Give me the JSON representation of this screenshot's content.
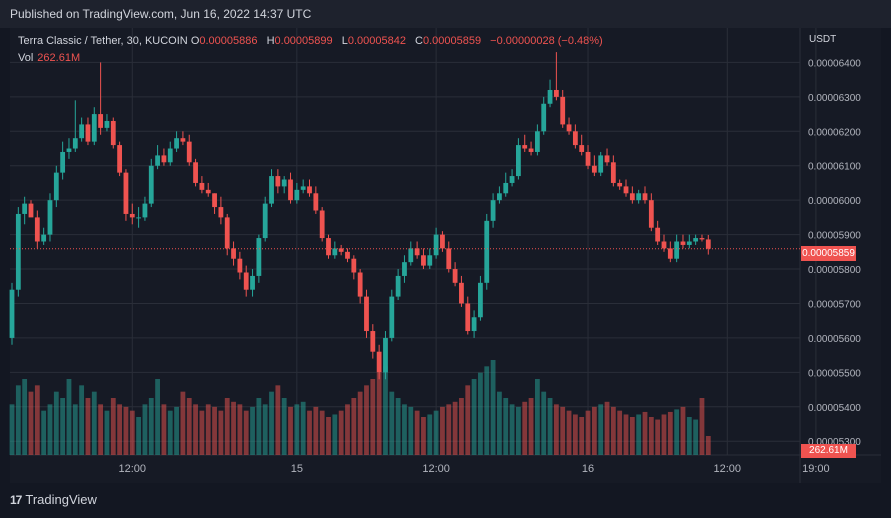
{
  "header": {
    "published_text": "Published on TradingView.com, Jun 16, 2022 14:37 UTC"
  },
  "legend": {
    "symbol": "Terra Classic / Tether, 30, KUCOIN",
    "o_label": "O",
    "o_value": "0.00005886",
    "h_label": "H",
    "h_value": "0.00005899",
    "l_label": "L",
    "l_value": "0.00005842",
    "c_label": "C",
    "c_value": "0.00005859",
    "change": "−0.00000028 (−0.48%)",
    "vol_label": "Vol",
    "vol_value": "262.61M"
  },
  "axis": {
    "currency": "USDT",
    "last_price_tag": "0.00005859",
    "volume_tag": "262.61M"
  },
  "footer": {
    "brand": "TradingView",
    "logo": "17"
  },
  "colors": {
    "up": "#26a69a",
    "down": "#ef5350",
    "grid": "#2a2e39",
    "bg": "#161a25"
  },
  "chart_data": {
    "type": "candlestick",
    "symbol": "Terra Classic / Tether",
    "interval": "30",
    "exchange": "KUCOIN",
    "y_ticks": [
      "0.00005300",
      "0.00005400",
      "0.00005500",
      "0.00005600",
      "0.00005700",
      "0.00005800",
      "0.00005900",
      "0.00006000",
      "0.00006100",
      "0.00006200",
      "0.00006300",
      "0.00006400"
    ],
    "x_ticks": [
      "12:00",
      "15",
      "12:00",
      "16",
      "12:00",
      "19:00"
    ],
    "x_tick_index": [
      19,
      45,
      67,
      91,
      113,
      127
    ],
    "ylim": [
      5.26e-05,
      6.5e-05
    ],
    "last_price": 5.859e-05,
    "grid": true,
    "candles": {
      "open": [
        5600,
        5740,
        5960,
        5990,
        5950,
        5880,
        5900,
        6000,
        6080,
        6140,
        6150,
        6180,
        6220,
        6170,
        6250,
        6210,
        6230,
        6160,
        6080,
        5960,
        5950,
        5950,
        5990,
        6100,
        6130,
        6110,
        6150,
        6180,
        6170,
        6110,
        6050,
        6030,
        6020,
        5980,
        5950,
        5860,
        5830,
        5790,
        5740,
        5780,
        5890,
        5990,
        6070,
        6040,
        6060,
        6000,
        6030,
        6040,
        6020,
        5970,
        5890,
        5840,
        5860,
        5850,
        5830,
        5790,
        5720,
        5620,
        5560,
        5500,
        5600,
        5720,
        5780,
        5820,
        5860,
        5840,
        5810,
        5840,
        5900,
        5860,
        5800,
        5760,
        5700,
        5620,
        5660,
        5760,
        5940,
        6000,
        6020,
        6050,
        6070,
        6160,
        6150,
        6140,
        6200,
        6280,
        6320,
        6300,
        6220,
        6200,
        6160,
        6140,
        6100,
        6080,
        6130,
        6110,
        6050,
        6040,
        6020,
        6000,
        6020,
        6000,
        5920,
        5880,
        5860,
        5830,
        5880,
        5870,
        5880,
        5890,
        5886
      ],
      "close": [
        5740,
        5960,
        5990,
        5950,
        5880,
        5900,
        6000,
        6080,
        6140,
        6150,
        6180,
        6220,
        6170,
        6250,
        6210,
        6230,
        6160,
        6080,
        5960,
        5950,
        5950,
        5990,
        6100,
        6130,
        6110,
        6150,
        6180,
        6170,
        6110,
        6050,
        6030,
        6020,
        5980,
        5950,
        5860,
        5830,
        5790,
        5740,
        5780,
        5890,
        5990,
        6070,
        6040,
        6060,
        6000,
        6030,
        6040,
        6020,
        5970,
        5890,
        5840,
        5860,
        5850,
        5830,
        5790,
        5720,
        5620,
        5560,
        5500,
        5600,
        5720,
        5780,
        5820,
        5860,
        5840,
        5810,
        5840,
        5900,
        5860,
        5800,
        5760,
        5700,
        5620,
        5660,
        5760,
        5940,
        6000,
        6020,
        6050,
        6070,
        6160,
        6150,
        6140,
        6200,
        6280,
        6320,
        6300,
        6220,
        6200,
        6160,
        6140,
        6100,
        6080,
        6130,
        6110,
        6050,
        6040,
        6020,
        6000,
        6020,
        6000,
        5920,
        5880,
        5860,
        5830,
        5880,
        5870,
        5880,
        5890,
        5886,
        5859
      ],
      "high": [
        5760,
        5980,
        6010,
        6000,
        5970,
        5920,
        6020,
        6100,
        6170,
        6180,
        6290,
        6240,
        6240,
        6270,
        6400,
        6250,
        6240,
        6170,
        6090,
        5990,
        5980,
        6010,
        6120,
        6160,
        6150,
        6170,
        6200,
        6200,
        6190,
        6120,
        6070,
        6050,
        6020,
        6010,
        5960,
        5880,
        5850,
        5810,
        5800,
        5900,
        6010,
        6090,
        6090,
        6070,
        6080,
        6050,
        6060,
        6060,
        6040,
        5980,
        5900,
        5880,
        5870,
        5860,
        5840,
        5800,
        5740,
        5640,
        5580,
        5620,
        5740,
        5800,
        5840,
        5880,
        5880,
        5860,
        5860,
        5920,
        5910,
        5880,
        5820,
        5780,
        5720,
        5680,
        5780,
        5960,
        6020,
        6040,
        6080,
        6090,
        6180,
        6190,
        6170,
        6220,
        6300,
        6350,
        6430,
        6320,
        6240,
        6220,
        6190,
        6160,
        6130,
        6140,
        6150,
        6130,
        6060,
        6060,
        6040,
        6030,
        6040,
        6020,
        5940,
        5900,
        5880,
        5900,
        5900,
        5900,
        5900,
        5900,
        5899
      ],
      "low": [
        5580,
        5720,
        5930,
        5960,
        5860,
        5870,
        5880,
        5980,
        6060,
        6120,
        6140,
        6170,
        6160,
        6160,
        6190,
        6200,
        6150,
        6070,
        5940,
        5930,
        5920,
        5940,
        5980,
        6090,
        6100,
        6100,
        6140,
        6160,
        6100,
        6040,
        6020,
        6010,
        5960,
        5930,
        5840,
        5810,
        5770,
        5720,
        5720,
        5760,
        5880,
        5980,
        6020,
        6020,
        5990,
        5990,
        6020,
        6010,
        5960,
        5880,
        5830,
        5830,
        5840,
        5820,
        5770,
        5700,
        5600,
        5540,
        5480,
        5480,
        5590,
        5710,
        5760,
        5810,
        5830,
        5800,
        5800,
        5830,
        5850,
        5790,
        5750,
        5690,
        5610,
        5600,
        5650,
        5740,
        5920,
        5990,
        6010,
        6040,
        6060,
        6140,
        6130,
        6130,
        6190,
        6270,
        6290,
        6210,
        6190,
        6150,
        6130,
        6090,
        6070,
        6070,
        6100,
        6040,
        6030,
        6010,
        5990,
        5990,
        5990,
        5910,
        5870,
        5850,
        5820,
        5820,
        5860,
        5860,
        5870,
        5880,
        5842
      ]
    },
    "volume": [
      40,
      55,
      60,
      50,
      55,
      35,
      40,
      50,
      45,
      60,
      40,
      55,
      45,
      50,
      40,
      35,
      45,
      40,
      38,
      35,
      30,
      40,
      45,
      60,
      40,
      35,
      38,
      50,
      45,
      40,
      35,
      40,
      38,
      35,
      45,
      42,
      40,
      35,
      38,
      45,
      40,
      50,
      55,
      45,
      38,
      40,
      42,
      35,
      38,
      35,
      30,
      32,
      35,
      40,
      45,
      50,
      55,
      60,
      65,
      70,
      50,
      45,
      40,
      38,
      35,
      30,
      32,
      35,
      38,
      40,
      42,
      45,
      55,
      60,
      65,
      70,
      75,
      50,
      45,
      40,
      38,
      42,
      45,
      60,
      50,
      45,
      40,
      38,
      35,
      32,
      30,
      35,
      38,
      40,
      42,
      38,
      35,
      32,
      30,
      32,
      34,
      30,
      28,
      32,
      34,
      36,
      38,
      30,
      28,
      45,
      15
    ]
  }
}
